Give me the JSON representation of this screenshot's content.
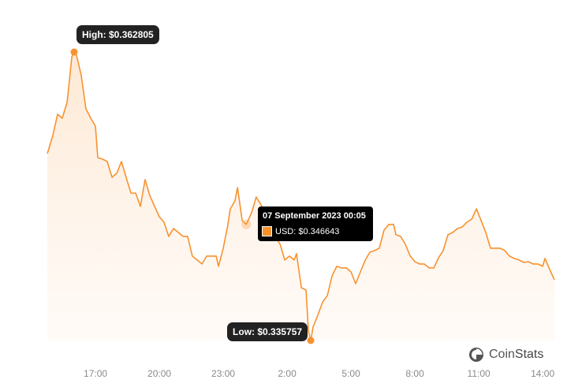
{
  "chart_data": {
    "type": "area",
    "title": "",
    "xlabel": "",
    "ylabel": "",
    "currency": "USD",
    "x_unit": "hours (continuous from 06 Sep 2023 00:00)",
    "xlim": [
      14.74,
      38.55
    ],
    "ylim": [
      0.335757,
      0.362805
    ],
    "x_ticks": [
      17,
      20,
      23,
      26,
      29,
      32,
      35,
      38
    ],
    "x_tick_labels": [
      "17:00",
      "20:00",
      "23:00",
      "2:00",
      "5:00",
      "8:00",
      "11:00",
      "14:00"
    ],
    "grid": false,
    "line_color": "#f7922f",
    "fill_color": "#fdf0e4",
    "points": [
      [
        14.74,
        0.35328
      ],
      [
        15.0,
        0.35498
      ],
      [
        15.22,
        0.35697
      ],
      [
        15.44,
        0.3566
      ],
      [
        15.67,
        0.35808
      ],
      [
        15.89,
        0.36237
      ],
      [
        16.0,
        0.362805
      ],
      [
        16.11,
        0.36251
      ],
      [
        16.33,
        0.36067
      ],
      [
        16.55,
        0.35749
      ],
      [
        16.78,
        0.3566
      ],
      [
        17.0,
        0.35586
      ],
      [
        17.11,
        0.35291
      ],
      [
        17.33,
        0.35276
      ],
      [
        17.55,
        0.35254
      ],
      [
        17.78,
        0.35106
      ],
      [
        18.0,
        0.35143
      ],
      [
        18.22,
        0.35254
      ],
      [
        18.44,
        0.35106
      ],
      [
        18.67,
        0.34958
      ],
      [
        18.89,
        0.34958
      ],
      [
        19.11,
        0.34833
      ],
      [
        19.33,
        0.35084
      ],
      [
        19.55,
        0.34936
      ],
      [
        19.78,
        0.34833
      ],
      [
        20.0,
        0.34736
      ],
      [
        20.22,
        0.34685
      ],
      [
        20.44,
        0.34552
      ],
      [
        20.67,
        0.34626
      ],
      [
        20.89,
        0.34589
      ],
      [
        21.11,
        0.34552
      ],
      [
        21.33,
        0.34552
      ],
      [
        21.55,
        0.34367
      ],
      [
        21.78,
        0.3433
      ],
      [
        22.0,
        0.34293
      ],
      [
        22.22,
        0.34367
      ],
      [
        22.44,
        0.34367
      ],
      [
        22.67,
        0.34367
      ],
      [
        22.78,
        0.34271
      ],
      [
        23.0,
        0.34441
      ],
      [
        23.22,
        0.34663
      ],
      [
        23.33,
        0.3481
      ],
      [
        23.55,
        0.34884
      ],
      [
        23.67,
        0.3501
      ],
      [
        23.89,
        0.347
      ],
      [
        24.08,
        0.346643
      ],
      [
        24.33,
        0.34773
      ],
      [
        24.55,
        0.34921
      ],
      [
        24.78,
        0.34847
      ],
      [
        25.0,
        0.34773
      ],
      [
        25.22,
        0.34626
      ],
      [
        25.44,
        0.34552
      ],
      [
        25.67,
        0.34478
      ],
      [
        25.89,
        0.3433
      ],
      [
        26.11,
        0.34367
      ],
      [
        26.33,
        0.3433
      ],
      [
        26.44,
        0.34389
      ],
      [
        26.67,
        0.34071
      ],
      [
        26.89,
        0.34049
      ],
      [
        27.0,
        0.33665
      ],
      [
        27.11,
        0.335757
      ],
      [
        27.22,
        0.33702
      ],
      [
        27.44,
        0.33813
      ],
      [
        27.67,
        0.33938
      ],
      [
        27.89,
        0.33997
      ],
      [
        28.11,
        0.34182
      ],
      [
        28.33,
        0.34271
      ],
      [
        28.55,
        0.34256
      ],
      [
        28.78,
        0.34256
      ],
      [
        29.0,
        0.34219
      ],
      [
        29.22,
        0.34108
      ],
      [
        29.44,
        0.34219
      ],
      [
        29.67,
        0.3433
      ],
      [
        29.89,
        0.34404
      ],
      [
        30.11,
        0.34419
      ],
      [
        30.33,
        0.34441
      ],
      [
        30.55,
        0.34611
      ],
      [
        30.78,
        0.34664
      ],
      [
        31.0,
        0.34664
      ],
      [
        31.11,
        0.34567
      ],
      [
        31.33,
        0.34552
      ],
      [
        31.55,
        0.34478
      ],
      [
        31.78,
        0.34367
      ],
      [
        32.0,
        0.34315
      ],
      [
        32.22,
        0.34293
      ],
      [
        32.44,
        0.34293
      ],
      [
        32.67,
        0.34256
      ],
      [
        32.89,
        0.34256
      ],
      [
        33.11,
        0.34352
      ],
      [
        33.33,
        0.34419
      ],
      [
        33.55,
        0.34567
      ],
      [
        33.78,
        0.34589
      ],
      [
        34.0,
        0.34626
      ],
      [
        34.22,
        0.3464
      ],
      [
        34.44,
        0.34685
      ],
      [
        34.67,
        0.34714
      ],
      [
        34.89,
        0.3481
      ],
      [
        35.11,
        0.347
      ],
      [
        35.33,
        0.34589
      ],
      [
        35.55,
        0.34441
      ],
      [
        35.78,
        0.34441
      ],
      [
        36.0,
        0.34441
      ],
      [
        36.22,
        0.34419
      ],
      [
        36.44,
        0.34367
      ],
      [
        36.67,
        0.34345
      ],
      [
        36.89,
        0.3433
      ],
      [
        37.11,
        0.34308
      ],
      [
        37.33,
        0.34315
      ],
      [
        37.55,
        0.34293
      ],
      [
        37.78,
        0.34293
      ],
      [
        38.0,
        0.34271
      ],
      [
        38.11,
        0.34345
      ],
      [
        38.33,
        0.34241
      ],
      [
        38.55,
        0.34145
      ]
    ],
    "high": {
      "x": 16.0,
      "value": 0.362805,
      "label": "High: $0.362805"
    },
    "low": {
      "x": 27.11,
      "value": 0.335757,
      "label": "Low: $0.335757"
    },
    "tooltip": {
      "x": 24.08,
      "value": 0.346643,
      "date": "07 September 2023 00:05",
      "series_label": "USD: $0.346643"
    }
  },
  "brand": {
    "name_light": "Coin",
    "name_bold": "Stats"
  }
}
